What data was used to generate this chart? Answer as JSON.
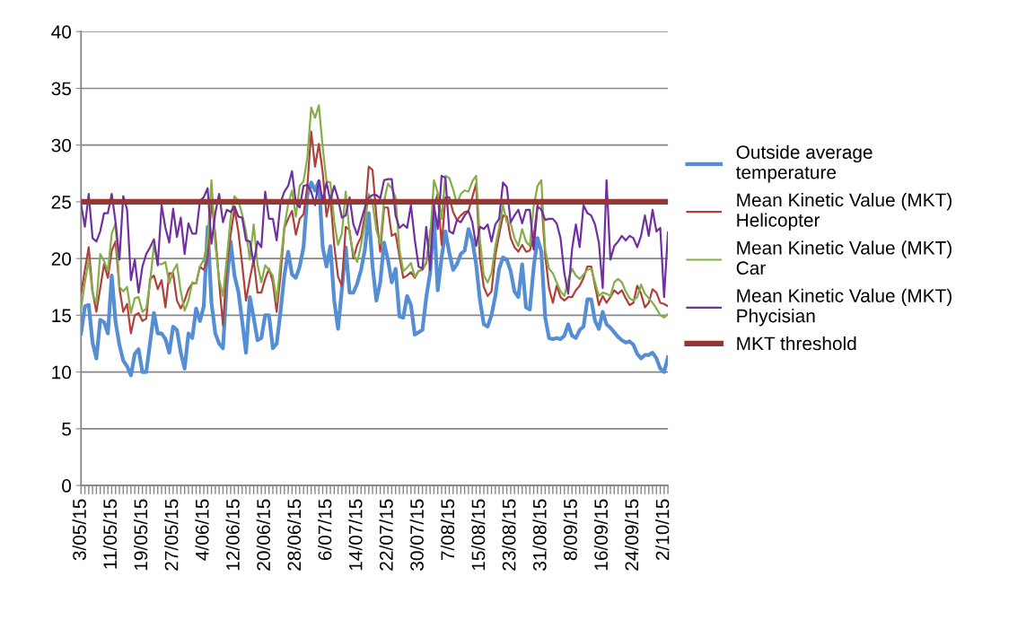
{
  "chart_data": {
    "type": "line",
    "categories": [
      "3/05/15",
      null,
      null,
      null,
      null,
      null,
      null,
      null,
      "11/05/15",
      null,
      null,
      null,
      null,
      null,
      null,
      null,
      "19/05/15",
      null,
      null,
      null,
      null,
      null,
      null,
      null,
      "27/05/15",
      null,
      null,
      null,
      null,
      null,
      null,
      null,
      "4/06/15",
      null,
      null,
      null,
      null,
      null,
      null,
      null,
      "12/06/15",
      null,
      null,
      null,
      null,
      null,
      null,
      null,
      "20/06/15",
      null,
      null,
      null,
      null,
      null,
      null,
      null,
      "28/06/15",
      null,
      null,
      null,
      null,
      null,
      null,
      null,
      "6/07/15",
      null,
      null,
      null,
      null,
      null,
      null,
      null,
      "14/07/15",
      null,
      null,
      null,
      null,
      null,
      null,
      null,
      "22/07/15",
      null,
      null,
      null,
      null,
      null,
      null,
      null,
      "30/07/15",
      null,
      null,
      null,
      null,
      null,
      null,
      null,
      "7/08/15",
      null,
      null,
      null,
      null,
      null,
      null,
      null,
      "15/08/15",
      null,
      null,
      null,
      null,
      null,
      null,
      null,
      "23/08/15",
      null,
      null,
      null,
      null,
      null,
      null,
      null,
      "31/08/15",
      null,
      null,
      null,
      null,
      null,
      null,
      null,
      "8/09/15",
      null,
      null,
      null,
      null,
      null,
      null,
      null,
      "16/09/15",
      null,
      null,
      null,
      null,
      null,
      null,
      null,
      "24/09/15",
      null,
      null,
      null,
      null,
      null,
      null,
      null,
      "2/10/15",
      null
    ],
    "series": [
      {
        "name": "Outside average\ntemperature",
        "color": "#558ed5",
        "values": [
          13.4,
          15.8,
          15.9,
          12.6,
          11.2,
          14.6,
          14.4,
          13.4,
          18.5,
          14.4,
          12.4,
          11.0,
          10.5,
          9.7,
          11.6,
          12.0,
          10.0,
          10.0,
          12.6,
          15.2,
          13.4,
          13.4,
          12.9,
          11.7,
          14.0,
          13.7,
          11.7,
          10.3,
          13.4,
          13.0,
          15.6,
          14.5,
          15.8,
          22.8,
          16.1,
          13.4,
          12.5,
          12.1,
          17.9,
          21.5,
          18.5,
          17.1,
          14.5,
          11.7,
          16.6,
          14.8,
          12.8,
          13.0,
          15.0,
          15.0,
          12.1,
          12.5,
          15.3,
          18.5,
          20.6,
          18.6,
          18.3,
          19.3,
          21.0,
          25.6,
          26.7,
          26.0,
          26.8,
          21.0,
          19.3,
          21.1,
          16.3,
          13.8,
          17.3,
          21.0,
          17.0,
          17.0,
          17.8,
          19.0,
          20.8,
          24.0,
          19.3,
          16.3,
          17.9,
          21.4,
          19.9,
          17.9,
          19.1,
          14.9,
          14.8,
          16.7,
          15.9,
          13.3,
          13.5,
          13.7,
          16.6,
          18.7,
          23.7,
          17.2,
          20.1,
          22.4,
          20.5,
          19.0,
          19.5,
          20.4,
          20.7,
          22.6,
          21.6,
          19.5,
          16.3,
          14.2,
          14.0,
          15.0,
          16.7,
          19.1,
          20.1,
          19.9,
          18.9,
          17.1,
          16.6,
          19.5,
          15.7,
          15.5,
          19.2,
          21.8,
          20.6,
          14.8,
          13.0,
          12.9,
          13.0,
          12.9,
          13.2,
          14.2,
          13.2,
          13.0,
          13.7,
          14.0,
          16.4,
          16.4,
          14.5,
          13.8,
          15.3,
          14.2,
          13.9,
          13.5,
          13.1,
          12.8,
          12.6,
          12.7,
          12.4,
          11.6,
          11.2,
          11.5,
          11.5,
          11.7,
          11.2,
          10.3,
          10.0,
          11.3
        ]
      },
      {
        "name": "Mean Kinetic Value (MKT)\nHelicopter",
        "color": "#b0403c",
        "values": [
          16.9,
          19.0,
          21.0,
          17.1,
          15.3,
          17.4,
          19.5,
          18.3,
          20.7,
          21.5,
          17.4,
          15.3,
          16.0,
          13.4,
          15.0,
          15.2,
          14.5,
          14.7,
          18.2,
          18.5,
          17.3,
          18.1,
          15.7,
          18.7,
          18.7,
          16.3,
          15.6,
          16.3,
          17.3,
          17.8,
          17.8,
          19.3,
          19.0,
          19.9,
          25.1,
          22.1,
          17.9,
          14.1,
          19.3,
          22.1,
          24.4,
          22.4,
          19.5,
          16.3,
          18.2,
          19.9,
          17.0,
          17.0,
          18.2,
          19.1,
          17.9,
          15.3,
          18.5,
          22.7,
          23.5,
          24.2,
          22.1,
          23.5,
          23.9,
          26.4,
          31.2,
          28.1,
          30.1,
          27.6,
          23.7,
          25.4,
          21.2,
          18.4,
          17.6,
          22.8,
          22.5,
          20.0,
          21.2,
          21.9,
          23.8,
          28.1,
          27.8,
          23.7,
          20.6,
          24.5,
          24.5,
          22.0,
          22.2,
          20.2,
          18.3,
          18.5,
          18.8,
          18.3,
          18.9,
          19.0,
          19.6,
          22.2,
          24.7,
          25.7,
          21.2,
          25.4,
          25.4,
          24.1,
          23.4,
          23.8,
          24.1,
          24.2,
          25.4,
          26.6,
          19.9,
          17.5,
          16.7,
          17.1,
          20.3,
          22.1,
          23.8,
          23.7,
          21.8,
          21.0,
          20.6,
          21.2,
          20.6,
          20.7,
          21.9,
          24.7,
          25.2,
          20.3,
          17.4,
          16.1,
          17.6,
          16.6,
          16.3,
          16.6,
          16.6,
          17.2,
          17.6,
          18.3,
          19.3,
          19.3,
          17.6,
          15.9,
          16.7,
          16.1,
          16.6,
          17.2,
          16.9,
          17.2,
          16.5,
          15.9,
          16.1,
          17.6,
          16.9,
          15.7,
          16.1,
          17.3,
          17.0,
          16.1,
          16.0,
          15.8
        ]
      },
      {
        "name": "Mean Kinetic Value (MKT)\nCar",
        "color": "#86ae48",
        "values": [
          15.6,
          17.9,
          19.9,
          16.9,
          16.1,
          20.4,
          19.8,
          18.9,
          22.2,
          23.1,
          17.5,
          17.1,
          17.5,
          15.2,
          16.5,
          16.6,
          15.3,
          15.6,
          17.9,
          21.2,
          19.5,
          19.5,
          19.7,
          17.8,
          18.9,
          19.5,
          17.1,
          15.4,
          16.3,
          17.9,
          17.8,
          19.3,
          19.9,
          21.6,
          26.9,
          21.2,
          18.2,
          16.7,
          20.0,
          23.6,
          25.5,
          25.1,
          23.9,
          22.4,
          19.9,
          23.0,
          19.5,
          17.9,
          19.4,
          19.0,
          18.5,
          16.2,
          19.6,
          22.8,
          24.8,
          26.0,
          23.7,
          26.4,
          26.8,
          28.9,
          33.3,
          32.4,
          33.5,
          29.8,
          26.8,
          26.7,
          23.3,
          21.2,
          22.2,
          25.9,
          22.2,
          20.4,
          19.7,
          21.2,
          23.1,
          25.7,
          24.9,
          22.5,
          21.3,
          25.1,
          26.6,
          26.2,
          25.4,
          20.8,
          18.9,
          19.2,
          19.6,
          18.4,
          18.9,
          19.0,
          19.7,
          21.7,
          26.9,
          25.8,
          23.5,
          27.3,
          27.1,
          26.1,
          24.8,
          25.7,
          26.0,
          25.9,
          26.8,
          27.3,
          21.6,
          18.5,
          17.9,
          18.7,
          21.1,
          22.7,
          24.7,
          23.2,
          23.1,
          21.8,
          21.1,
          22.6,
          21.5,
          21.1,
          24.6,
          26.4,
          26.9,
          20.8,
          19.1,
          18.7,
          17.9,
          17.1,
          16.7,
          18.1,
          19.1,
          18.5,
          18.2,
          18.6,
          19.0,
          19.1,
          17.9,
          16.7,
          17.0,
          16.9,
          16.7,
          17.9,
          18.2,
          17.9,
          17.1,
          16.5,
          16.3,
          16.6,
          17.7,
          16.9,
          16.5,
          16.1,
          15.6,
          15.0,
          14.8,
          15.1
        ]
      },
      {
        "name": "Mean Kinetic Value (MKT)\nPhycisian",
        "color": "#7030a0",
        "values": [
          24.8,
          22.8,
          25.7,
          21.8,
          21.5,
          22.4,
          24.0,
          24.0,
          25.7,
          23.2,
          19.9,
          25.5,
          24.3,
          18.1,
          19.9,
          17.0,
          19.3,
          20.4,
          21.0,
          21.7,
          19.4,
          24.7,
          22.7,
          21.4,
          24.4,
          21.9,
          23.6,
          20.4,
          23.1,
          22.2,
          22.2,
          25.1,
          25.4,
          26.2,
          21.3,
          24.0,
          25.7,
          23.2,
          24.3,
          24.1,
          24.6,
          23.7,
          23.6,
          21.6,
          21.5,
          19.6,
          21.5,
          21.0,
          25.9,
          23.5,
          23.5,
          21.6,
          24.9,
          25.9,
          26.4,
          27.7,
          24.9,
          24.5,
          26.4,
          26.5,
          25.9,
          24.7,
          26.9,
          25.1,
          26.7,
          25.1,
          26.4,
          25.3,
          23.6,
          23.8,
          25.4,
          23.0,
          22.1,
          23.3,
          24.5,
          25.4,
          25.6,
          25.6,
          25.3,
          26.9,
          27.0,
          27.0,
          23.8,
          22.7,
          23.0,
          22.7,
          24.7,
          21.7,
          19.3,
          19.1,
          22.8,
          19.0,
          24.7,
          22.6,
          27.3,
          27.1,
          22.4,
          22.2,
          23.4,
          23.2,
          23.8,
          24.2,
          23.2,
          21.1,
          22.8,
          22.6,
          23.0,
          21.5,
          23.0,
          23.5,
          26.7,
          26.3,
          23.2,
          23.8,
          24.3,
          23.1,
          24.3,
          24.3,
          20.8,
          24.6,
          24.3,
          23.4,
          23.5,
          23.5,
          23.1,
          21.8,
          18.7,
          16.9,
          20.8,
          23.0,
          21.0,
          24.7,
          24.0,
          23.8,
          23.0,
          21.4,
          17.4,
          26.9,
          19.9,
          21.1,
          21.5,
          22.0,
          21.6,
          22.0,
          21.8,
          21.0,
          22.0,
          23.8,
          22.0,
          24.3,
          22.4,
          22.7,
          16.6,
          22.3
        ]
      }
    ],
    "ref_lines": [
      {
        "axis": "y",
        "value": 25,
        "label": "MKT threshold",
        "color": "#953735"
      }
    ],
    "ylim": [
      0,
      40
    ],
    "yticks": [
      0,
      5,
      10,
      15,
      20,
      25,
      30,
      35,
      40
    ],
    "grid": "y",
    "legend": "right",
    "marker": "none",
    "line_style": "solid"
  }
}
